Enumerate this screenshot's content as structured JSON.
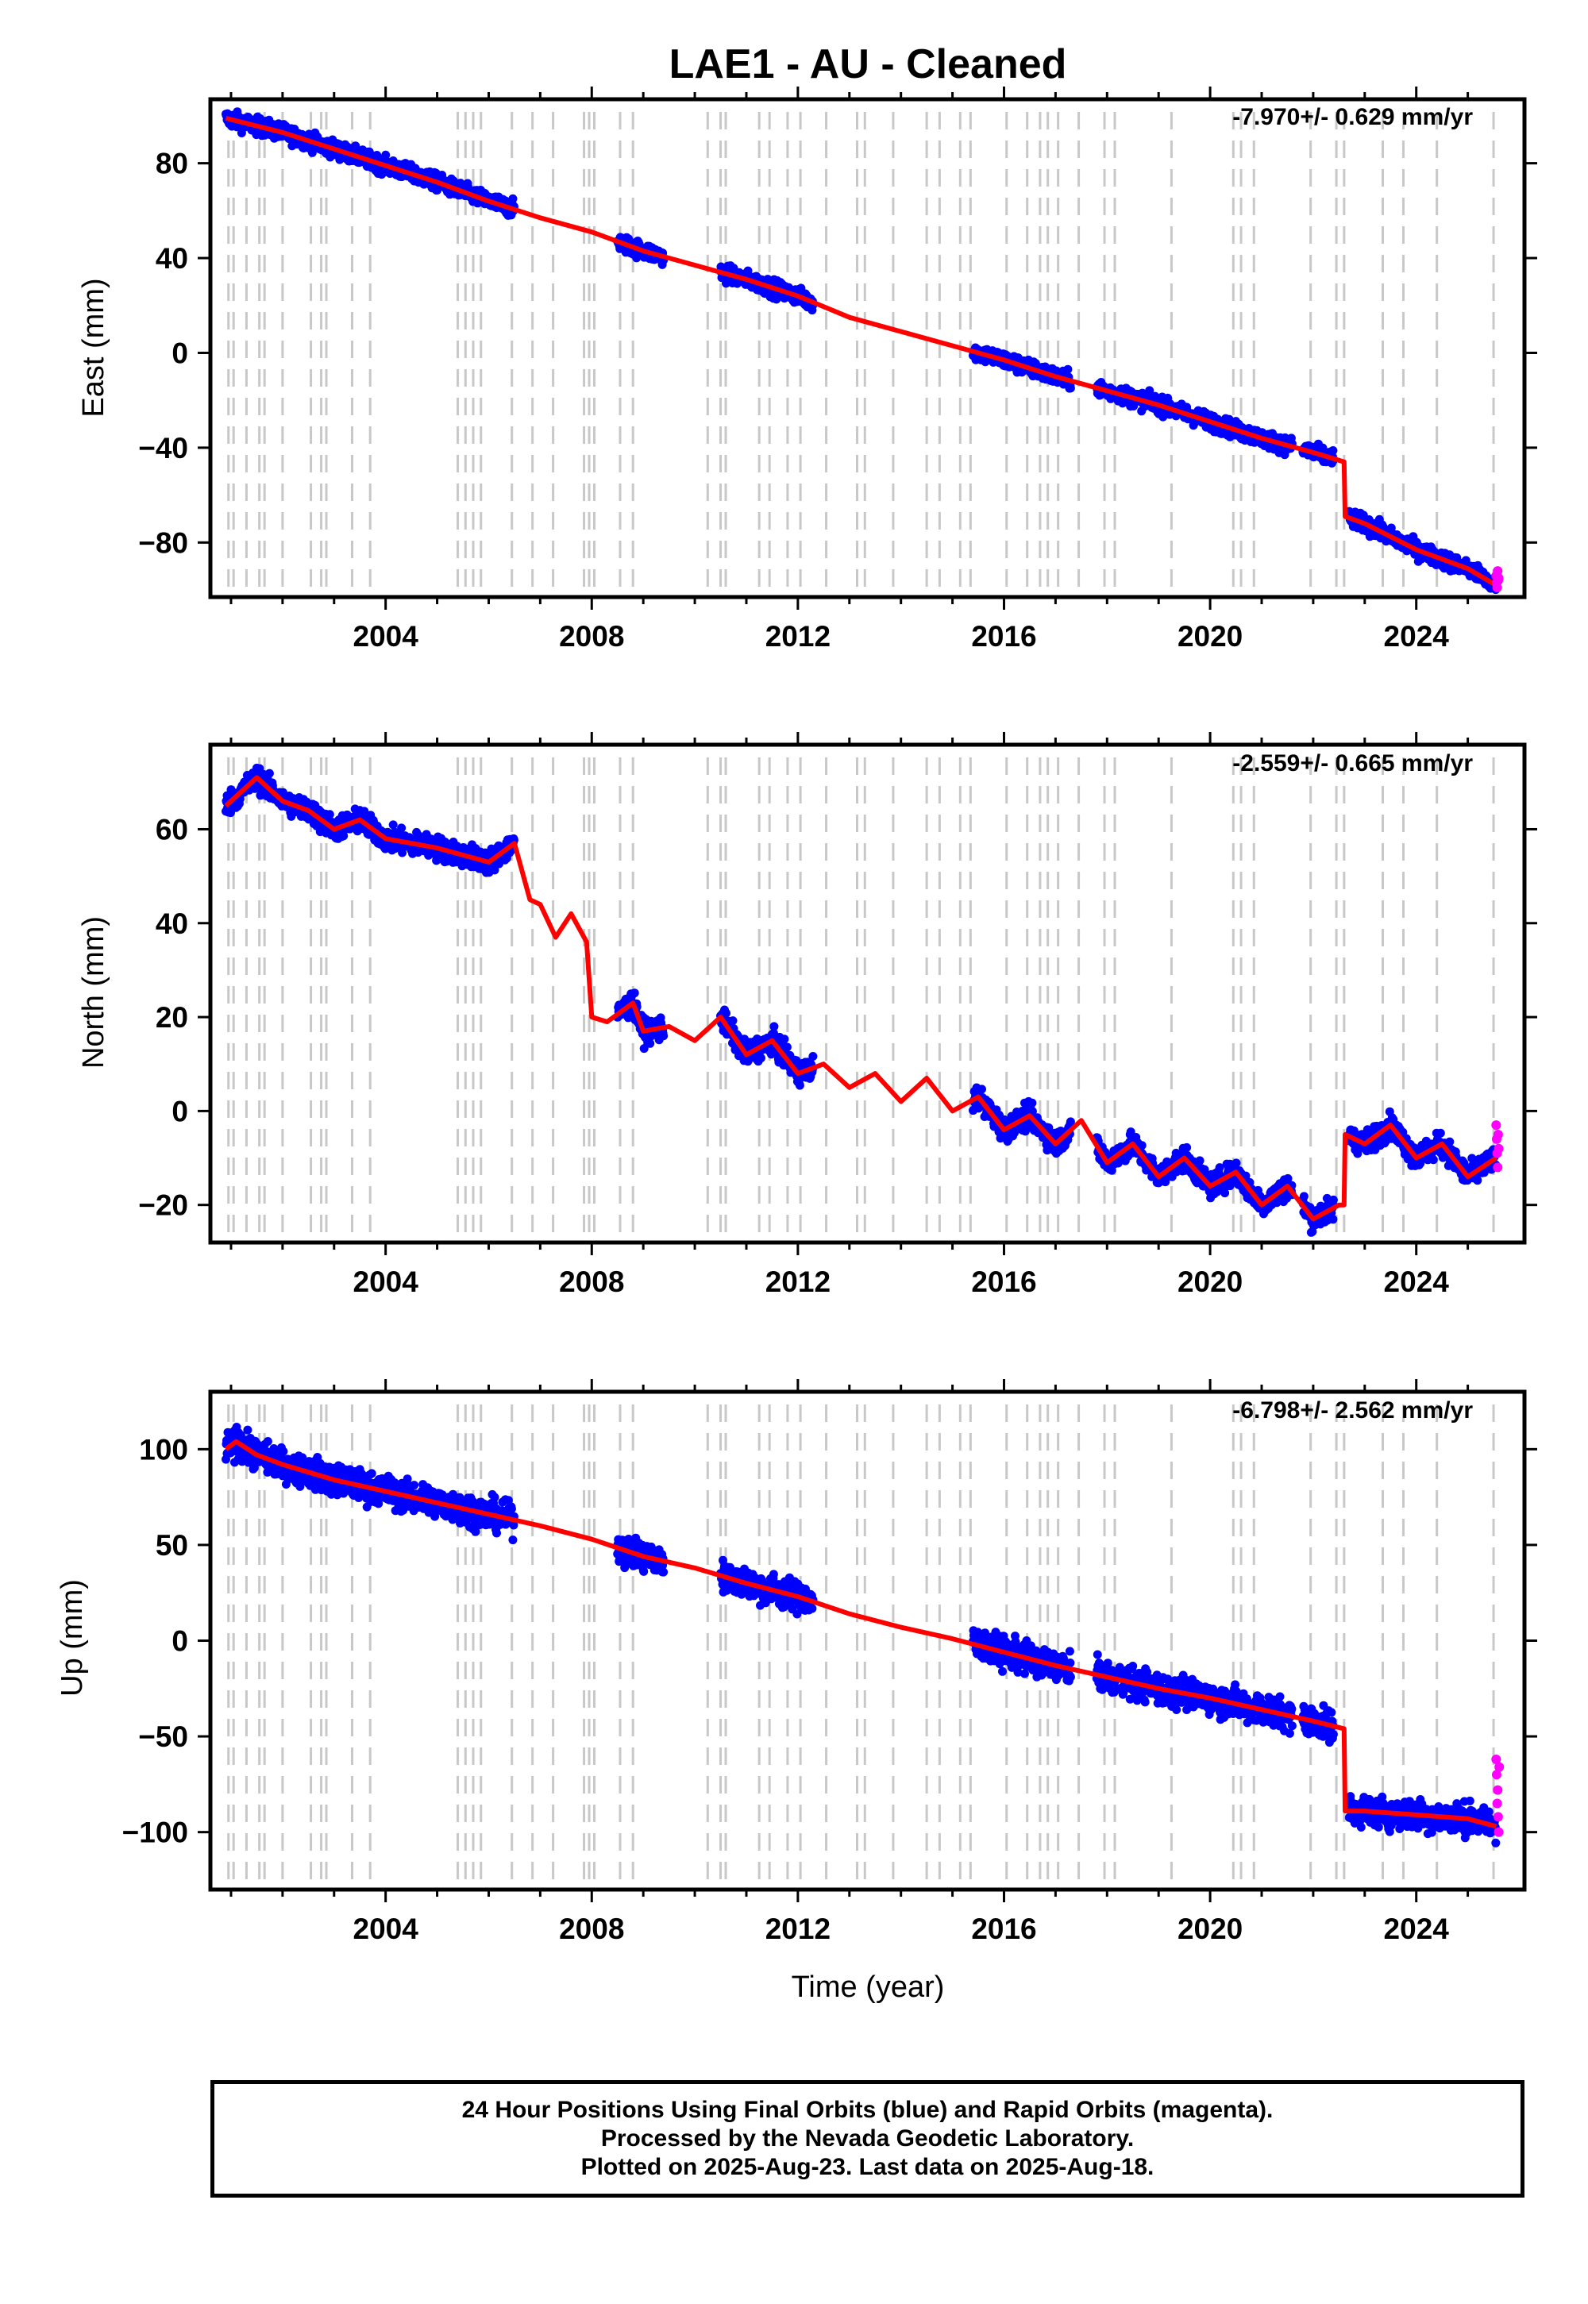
{
  "title": "LAE1  - AU - Cleaned",
  "xlabel": "Time (year)",
  "footer": {
    "line1": "24 Hour Positions Using Final Orbits (blue) and Rapid Orbits (magenta).",
    "line2": "Processed by the Nevada Geodetic Laboratory.",
    "line3": "Plotted on 2025-Aug-23. Last data on 2025-Aug-18."
  },
  "colors": {
    "final_points": "#0000ff",
    "rapid_points": "#ff00ff",
    "model_line": "#ff0000",
    "event_lines": "#c8c8c8"
  },
  "chart_data": [
    {
      "type": "scatter",
      "component": "East",
      "ylabel": "East (mm)",
      "rate": "-7.970+/- 0.629 mm/yr",
      "xlim": [
        2000.6,
        2026.1
      ],
      "ylim": [
        -103,
        107
      ],
      "yticks": [
        80,
        40,
        0,
        -40,
        -80
      ],
      "xticks": [
        2004,
        2008,
        2012,
        2016,
        2020,
        2024
      ],
      "noise": 3.5,
      "data_segments": [
        [
          2000.9,
          2006.5
        ],
        [
          2008.5,
          2009.4
        ],
        [
          2010.5,
          2012.3
        ],
        [
          2015.4,
          2017.3
        ],
        [
          2017.8,
          2021.6
        ],
        [
          2021.8,
          2022.4
        ],
        [
          2022.7,
          2025.55
        ]
      ],
      "model": [
        [
          2000.9,
          99
        ],
        [
          2002.0,
          93
        ],
        [
          2003.0,
          86
        ],
        [
          2004.0,
          79
        ],
        [
          2005.0,
          72
        ],
        [
          2006.0,
          64
        ],
        [
          2007.0,
          57
        ],
        [
          2008.0,
          51
        ],
        [
          2009.0,
          43
        ],
        [
          2010.0,
          37
        ],
        [
          2011.0,
          31
        ],
        [
          2012.0,
          24
        ],
        [
          2013.0,
          15
        ],
        [
          2014.0,
          9
        ],
        [
          2015.0,
          3
        ],
        [
          2016.0,
          -3
        ],
        [
          2017.0,
          -10
        ],
        [
          2018.0,
          -16
        ],
        [
          2019.0,
          -22
        ],
        [
          2020.0,
          -29
        ],
        [
          2021.0,
          -36
        ],
        [
          2022.0,
          -42
        ],
        [
          2022.6,
          -46
        ],
        [
          2022.62,
          -69
        ],
        [
          2023.0,
          -72
        ],
        [
          2024.0,
          -83
        ],
        [
          2025.0,
          -91
        ],
        [
          2025.55,
          -98
        ]
      ],
      "rapid_points": [
        [
          2025.55,
          -94
        ],
        [
          2025.56,
          -97
        ],
        [
          2025.57,
          -99
        ],
        [
          2025.58,
          -92
        ],
        [
          2025.59,
          -96
        ],
        [
          2025.6,
          -95
        ]
      ]
    },
    {
      "type": "scatter",
      "component": "North",
      "ylabel": "North (mm)",
      "rate": "-2.559+/- 0.665 mm/yr",
      "xlim": [
        2000.6,
        2026.1
      ],
      "ylim": [
        -28,
        78
      ],
      "yticks": [
        60,
        40,
        20,
        0,
        -20
      ],
      "xticks": [
        2004,
        2008,
        2012,
        2016,
        2020,
        2024
      ],
      "noise": 2.5,
      "data_segments": [
        [
          2000.9,
          2006.5
        ],
        [
          2008.5,
          2009.4
        ],
        [
          2010.5,
          2012.3
        ],
        [
          2015.4,
          2017.3
        ],
        [
          2017.8,
          2021.6
        ],
        [
          2021.8,
          2022.4
        ],
        [
          2022.7,
          2025.55
        ]
      ],
      "model": [
        [
          2000.9,
          65
        ],
        [
          2001.5,
          71
        ],
        [
          2002.0,
          66
        ],
        [
          2002.5,
          64
        ],
        [
          2003.0,
          60
        ],
        [
          2003.5,
          62
        ],
        [
          2004.0,
          58
        ],
        [
          2005.0,
          56
        ],
        [
          2006.0,
          53
        ],
        [
          2006.5,
          57
        ],
        [
          2006.8,
          45
        ],
        [
          2007.0,
          44
        ],
        [
          2007.3,
          37
        ],
        [
          2007.6,
          42
        ],
        [
          2007.9,
          36
        ],
        [
          2008.0,
          20
        ],
        [
          2008.3,
          19
        ],
        [
          2008.8,
          23
        ],
        [
          2009.0,
          17
        ],
        [
          2009.5,
          18
        ],
        [
          2010.0,
          15
        ],
        [
          2010.5,
          20
        ],
        [
          2011.0,
          12
        ],
        [
          2011.5,
          15
        ],
        [
          2012.0,
          8
        ],
        [
          2012.5,
          10
        ],
        [
          2013.0,
          5
        ],
        [
          2013.5,
          8
        ],
        [
          2014.0,
          2
        ],
        [
          2014.5,
          7
        ],
        [
          2015.0,
          0
        ],
        [
          2015.5,
          3
        ],
        [
          2016.0,
          -4
        ],
        [
          2016.5,
          -1
        ],
        [
          2017.0,
          -7
        ],
        [
          2017.5,
          -2
        ],
        [
          2018.0,
          -11
        ],
        [
          2018.5,
          -7
        ],
        [
          2019.0,
          -14
        ],
        [
          2019.5,
          -10
        ],
        [
          2020.0,
          -16
        ],
        [
          2020.5,
          -13
        ],
        [
          2021.0,
          -20
        ],
        [
          2021.5,
          -16
        ],
        [
          2022.0,
          -23
        ],
        [
          2022.5,
          -20
        ],
        [
          2022.6,
          -20
        ],
        [
          2022.62,
          -5
        ],
        [
          2023.0,
          -7
        ],
        [
          2023.5,
          -3
        ],
        [
          2024.0,
          -10
        ],
        [
          2024.5,
          -7
        ],
        [
          2025.0,
          -14
        ],
        [
          2025.55,
          -10
        ]
      ],
      "rapid_points": [
        [
          2025.55,
          -3
        ],
        [
          2025.56,
          -6
        ],
        [
          2025.57,
          -9
        ],
        [
          2025.58,
          -12
        ],
        [
          2025.59,
          -5
        ],
        [
          2025.6,
          -8
        ]
      ]
    },
    {
      "type": "scatter",
      "component": "Up",
      "ylabel": "Up (mm)",
      "rate": "-6.798+/- 2.562 mm/yr",
      "xlim": [
        2000.6,
        2026.1
      ],
      "ylim": [
        -130,
        130
      ],
      "yticks": [
        100,
        50,
        0,
        -50,
        -100
      ],
      "xticks": [
        2004,
        2008,
        2012,
        2016,
        2020,
        2024
      ],
      "noise": 8,
      "data_segments": [
        [
          2000.9,
          2006.5
        ],
        [
          2008.5,
          2009.4
        ],
        [
          2010.5,
          2012.3
        ],
        [
          2015.4,
          2017.3
        ],
        [
          2017.8,
          2021.6
        ],
        [
          2021.8,
          2022.4
        ],
        [
          2022.7,
          2025.55
        ]
      ],
      "model": [
        [
          2000.9,
          100
        ],
        [
          2001.1,
          104
        ],
        [
          2001.5,
          97
        ],
        [
          2002.0,
          92
        ],
        [
          2003.0,
          84
        ],
        [
          2004.0,
          78
        ],
        [
          2005.0,
          72
        ],
        [
          2006.0,
          66
        ],
        [
          2007.0,
          60
        ],
        [
          2008.0,
          53
        ],
        [
          2009.0,
          44
        ],
        [
          2010.0,
          38
        ],
        [
          2011.0,
          30
        ],
        [
          2012.0,
          23
        ],
        [
          2013.0,
          14
        ],
        [
          2014.0,
          7
        ],
        [
          2015.0,
          1
        ],
        [
          2016.0,
          -6
        ],
        [
          2017.0,
          -13
        ],
        [
          2018.0,
          -19
        ],
        [
          2019.0,
          -25
        ],
        [
          2020.0,
          -30
        ],
        [
          2021.0,
          -36
        ],
        [
          2022.0,
          -42
        ],
        [
          2022.6,
          -46
        ],
        [
          2022.62,
          -89
        ],
        [
          2023.0,
          -89
        ],
        [
          2024.0,
          -91
        ],
        [
          2025.0,
          -93
        ],
        [
          2025.55,
          -97
        ]
      ],
      "rapid_points": [
        [
          2025.55,
          -62
        ],
        [
          2025.56,
          -70
        ],
        [
          2025.57,
          -85
        ],
        [
          2025.58,
          -78
        ],
        [
          2025.59,
          -92
        ],
        [
          2025.6,
          -100
        ],
        [
          2025.61,
          -66
        ]
      ]
    }
  ],
  "event_years": [
    2000.95,
    2001.05,
    2001.3,
    2001.55,
    2001.65,
    2002.0,
    2002.55,
    2002.75,
    2002.85,
    2003.35,
    2003.7,
    2005.4,
    2005.55,
    2005.7,
    2005.85,
    2006.45,
    2006.85,
    2007.25,
    2007.85,
    2007.95,
    2008.05,
    2008.55,
    2008.8,
    2010.25,
    2010.5,
    2010.6,
    2011.25,
    2011.45,
    2011.8,
    2012.05,
    2012.55,
    2013.15,
    2013.3,
    2013.85,
    2014.5,
    2014.75,
    2015.15,
    2015.35,
    2016.05,
    2016.45,
    2016.7,
    2016.85,
    2017.05,
    2017.45,
    2017.95,
    2018.15,
    2019.25,
    2020.45,
    2020.6,
    2020.85,
    2021.95,
    2022.45,
    2022.6,
    2023.35,
    2023.75,
    2024.4,
    2025.5
  ]
}
